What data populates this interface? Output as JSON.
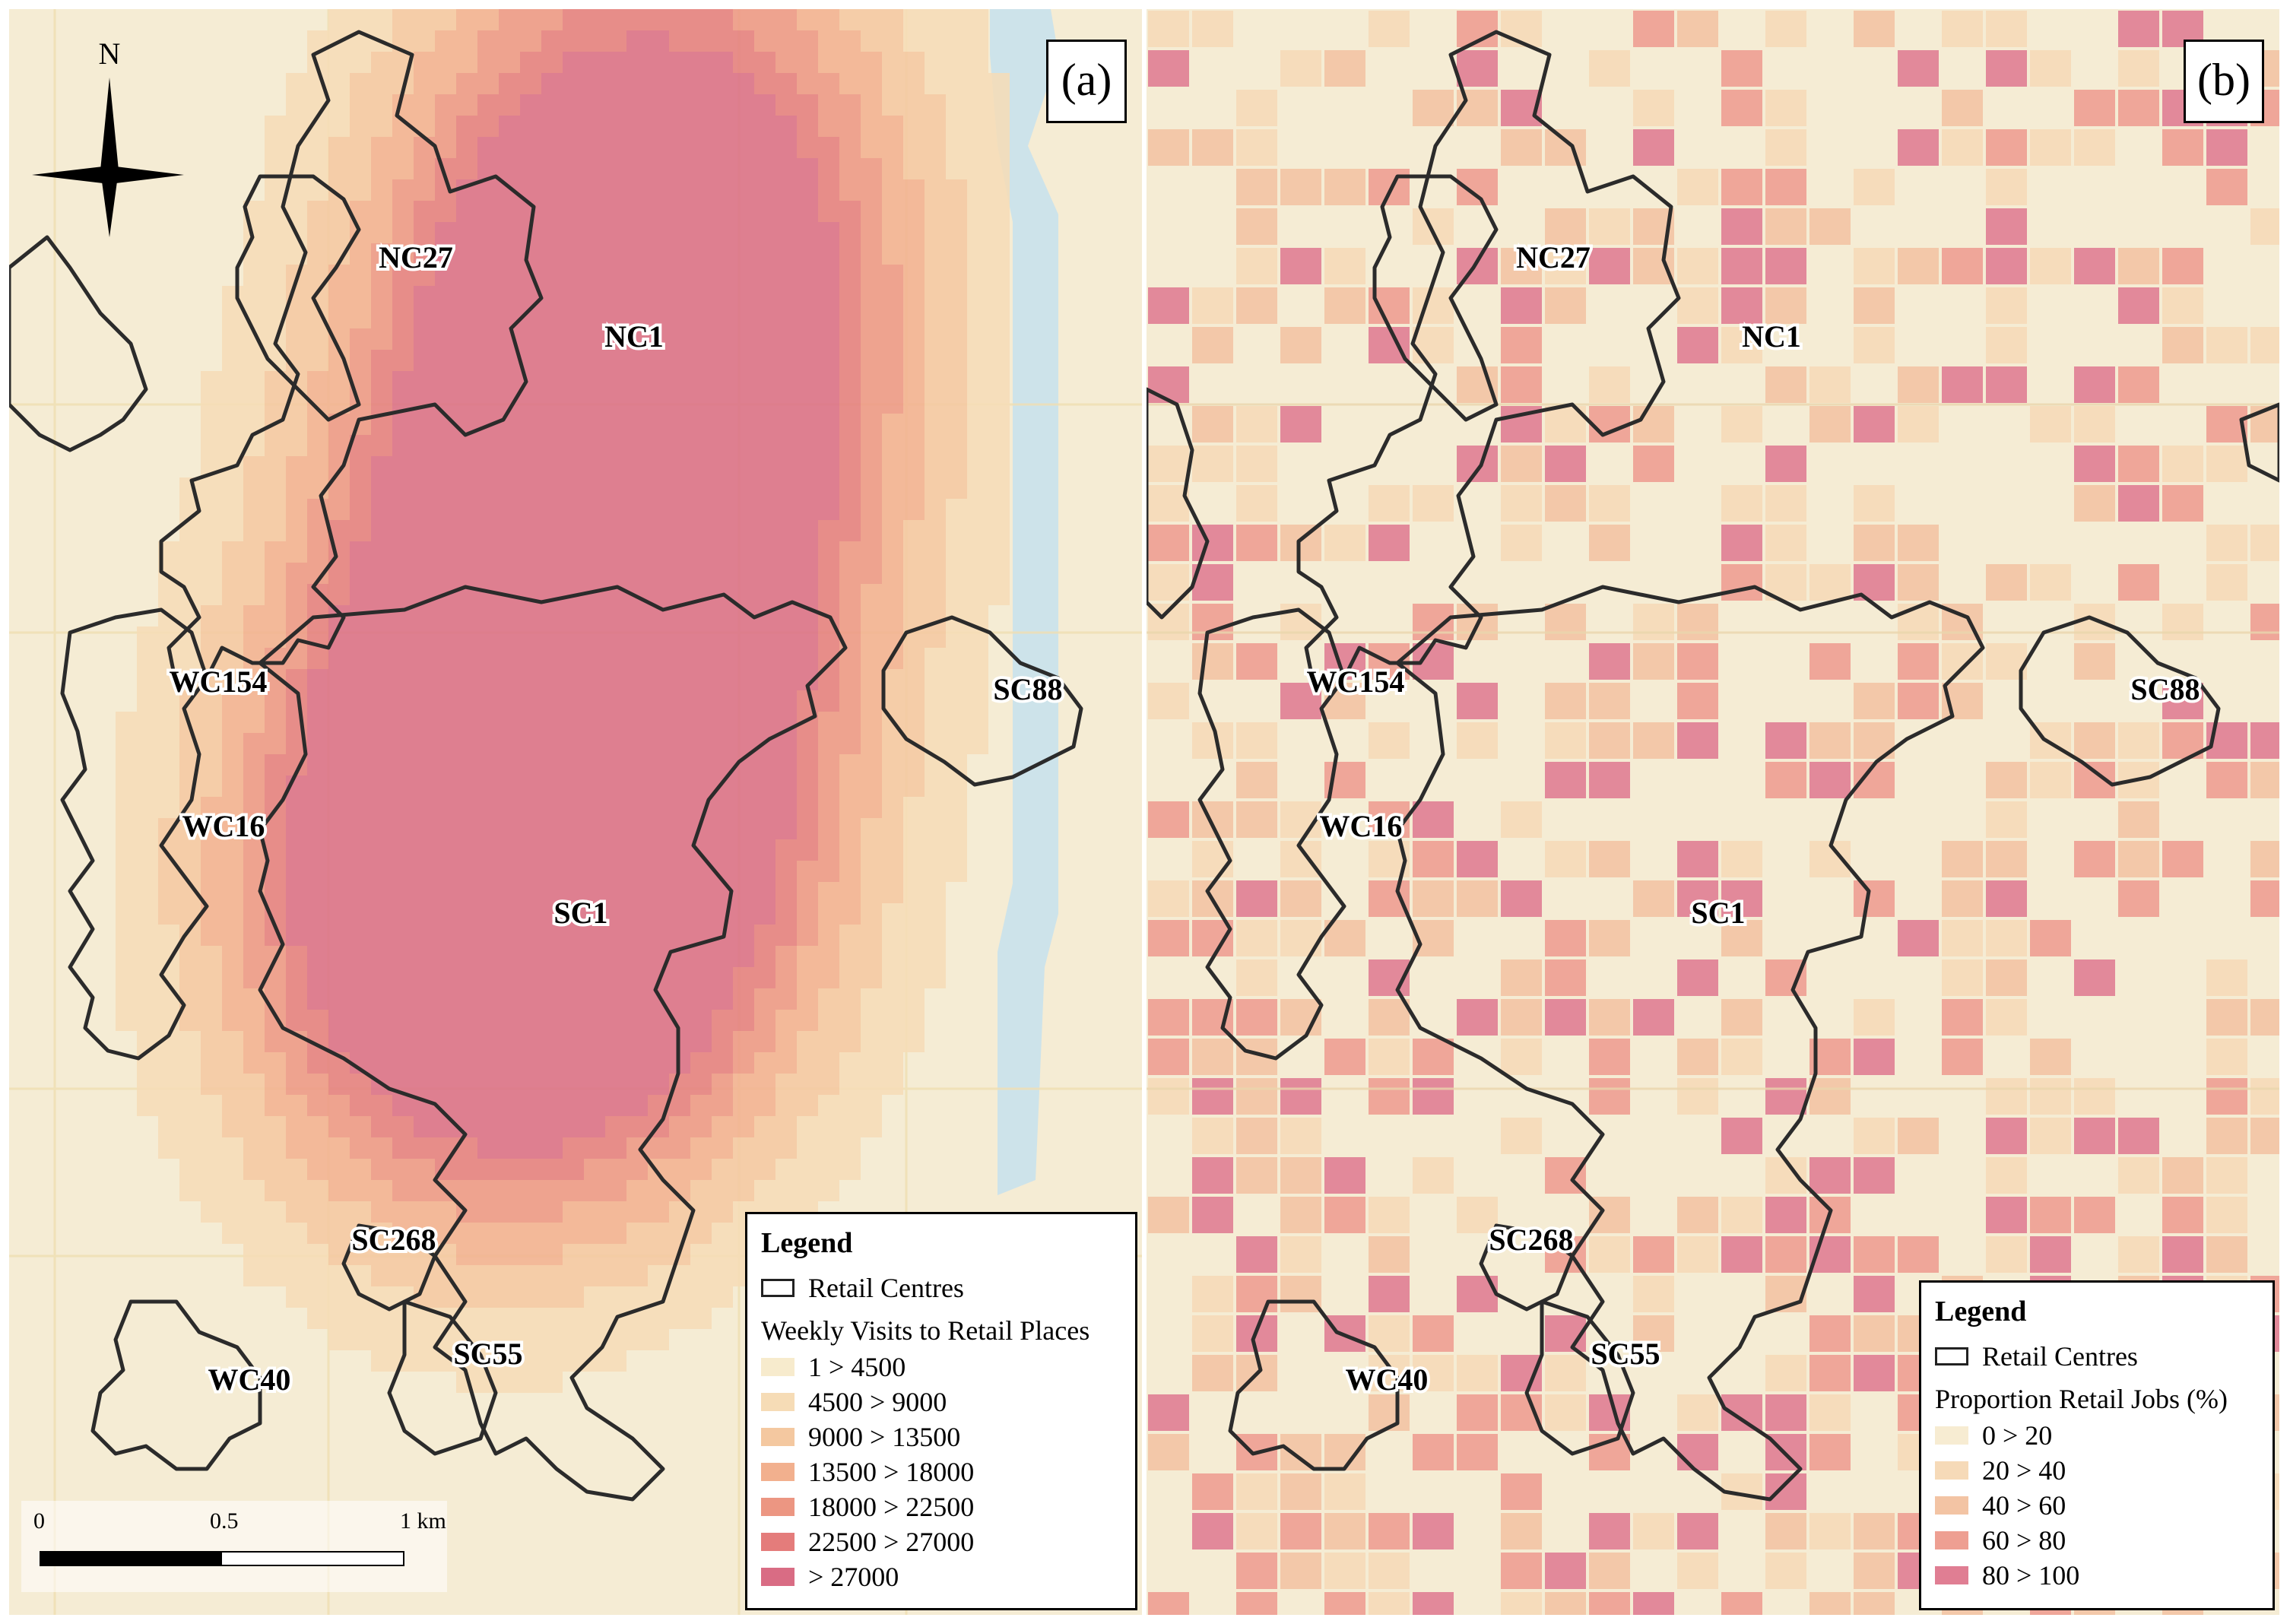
{
  "panels": [
    {
      "label": "(a)",
      "legend": {
        "title": "Legend",
        "boundary_label": "Retail Centres",
        "section_title": "Weekly Visits to Retail Places",
        "classes": [
          {
            "label": "1 > 4500",
            "color": "#f7ebcd"
          },
          {
            "label": "4500 > 9000",
            "color": "#f6dcb6"
          },
          {
            "label": "9000 > 13500",
            "color": "#f4c8a0"
          },
          {
            "label": "13500 > 18000",
            "color": "#f2b08e"
          },
          {
            "label": "18000 > 22500",
            "color": "#ec9682"
          },
          {
            "label": "22500 > 27000",
            "color": "#e47c7b"
          },
          {
            "label": "> 27000",
            "color": "#d96c84"
          }
        ]
      }
    },
    {
      "label": "(b)",
      "legend": {
        "title": "Legend",
        "boundary_label": "Retail Centres",
        "section_title": "Proportion Retail Jobs (%)",
        "classes": [
          {
            "label": "0 > 20",
            "color": "#f7ecd2"
          },
          {
            "label": "20 > 40",
            "color": "#f6dab8"
          },
          {
            "label": "40 > 60",
            "color": "#f3c4a4"
          },
          {
            "label": "60 > 80",
            "color": "#ee9f92"
          },
          {
            "label": "80 > 100",
            "color": "#e07e93"
          }
        ]
      }
    }
  ],
  "centre_labels": [
    "NC27",
    "NC1",
    "WC154",
    "WC16",
    "SC1",
    "SC88",
    "SC268",
    "SC55",
    "WC40"
  ],
  "north_arrow": {
    "label": "N",
    "icon": "north-arrow-icon"
  },
  "scale_bar": {
    "ticks": [
      "0",
      "0.5",
      "1 km"
    ]
  },
  "colors": {
    "water": "#cde3ea",
    "boundary": "#2b2b2b",
    "road": "#f0dfb2"
  }
}
